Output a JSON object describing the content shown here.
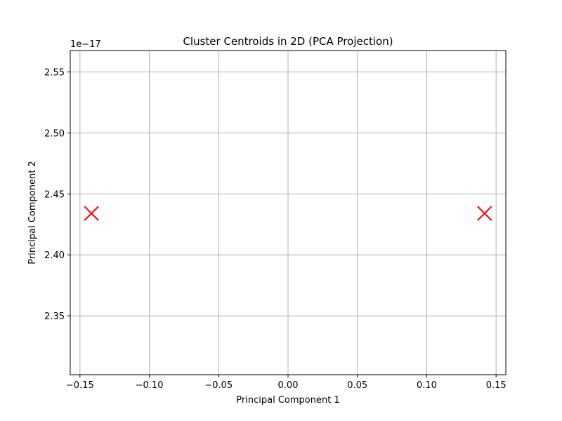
{
  "chart_data": {
    "type": "scatter",
    "title": "Cluster Centroids in 2D (PCA Projection)",
    "xlabel": "Principal Component 1",
    "ylabel": "Principal Component 2",
    "y_offset_label": "1e−17",
    "xlim": [
      -0.157,
      0.157
    ],
    "ylim": [
      2.3017,
      2.5676
    ],
    "x_ticks": [
      {
        "value": -0.15,
        "label": "−0.15"
      },
      {
        "value": -0.1,
        "label": "−0.10"
      },
      {
        "value": -0.05,
        "label": "−0.05"
      },
      {
        "value": 0.0,
        "label": "0.00"
      },
      {
        "value": 0.05,
        "label": "0.05"
      },
      {
        "value": 0.1,
        "label": "0.10"
      },
      {
        "value": 0.15,
        "label": "0.15"
      }
    ],
    "y_ticks": [
      {
        "value": 2.35,
        "label": "2.35"
      },
      {
        "value": 2.4,
        "label": "2.40"
      },
      {
        "value": 2.45,
        "label": "2.45"
      },
      {
        "value": 2.5,
        "label": "2.50"
      },
      {
        "value": 2.55,
        "label": "2.55"
      }
    ],
    "grid": true,
    "marker": "x",
    "marker_color": "#ff0000",
    "points": [
      {
        "x": -0.1417,
        "y": 2.434
      },
      {
        "x": 0.1417,
        "y": 2.434
      }
    ]
  }
}
